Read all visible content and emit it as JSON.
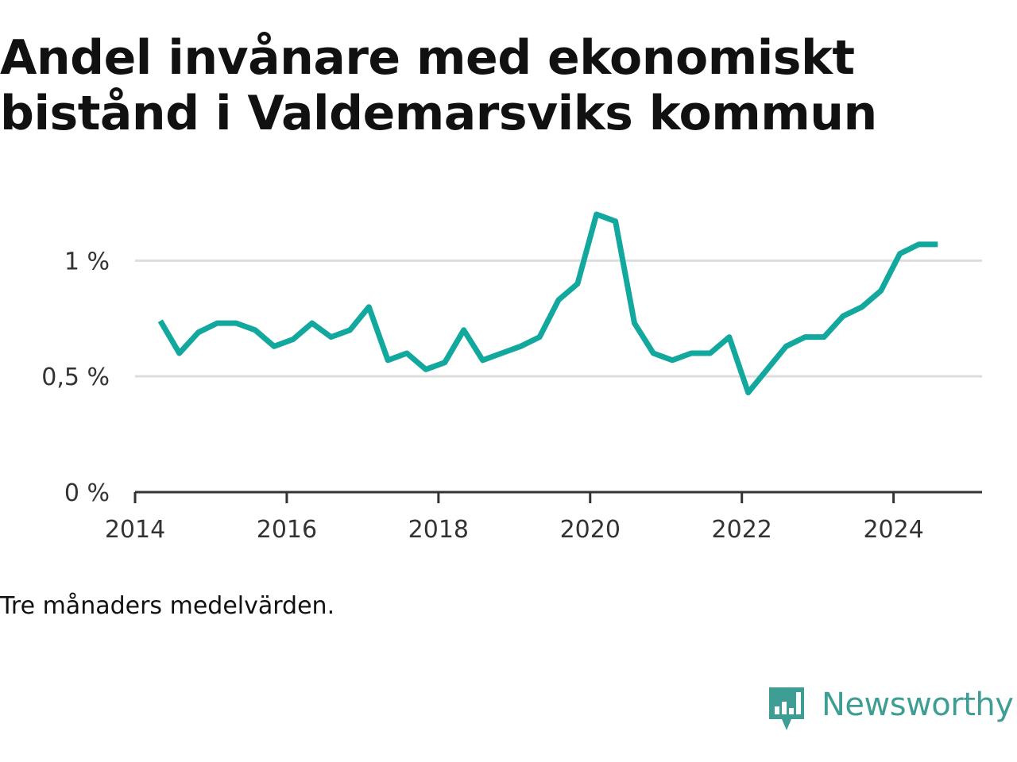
{
  "title": "Andel invånare med ekonomiskt bistånd i Valdemarsviks kommun",
  "note": "Tre månaders medelvärden.",
  "brand": {
    "name": "Newsworthy",
    "icon": "bar-chart-speech-bubble-icon",
    "color": "#3f9e93"
  },
  "chart_data": {
    "type": "line",
    "title": "Andel invånare med ekonomiskt bistånd i Valdemarsviks kommun",
    "xlabel": "",
    "ylabel": "",
    "xlim": [
      "2014-01",
      "2025-03"
    ],
    "ylim": [
      0,
      1.2
    ],
    "y_ticks": [
      0,
      0.5,
      1
    ],
    "y_tick_labels": [
      "0 %",
      "0,5 %",
      "1 %"
    ],
    "x_ticks": [
      "2014",
      "2016",
      "2018",
      "2020",
      "2022",
      "2024"
    ],
    "grid": true,
    "line_color": "#13a89e",
    "series": [
      {
        "name": "",
        "x": [
          "2014-05",
          "2014-08",
          "2014-11",
          "2015-02",
          "2015-05",
          "2015-08",
          "2015-11",
          "2016-02",
          "2016-05",
          "2016-08",
          "2016-11",
          "2017-02",
          "2017-05",
          "2017-08",
          "2017-11",
          "2018-02",
          "2018-05",
          "2018-08",
          "2018-11",
          "2019-02",
          "2019-05",
          "2019-08",
          "2019-11",
          "2020-02",
          "2020-05",
          "2020-08",
          "2020-11",
          "2021-02",
          "2021-05",
          "2021-08",
          "2021-11",
          "2022-02",
          "2022-05",
          "2022-08",
          "2022-11",
          "2023-02",
          "2023-05",
          "2023-08",
          "2023-11",
          "2024-02",
          "2024-05",
          "2024-08"
        ],
        "values": [
          0.74,
          0.6,
          0.69,
          0.73,
          0.73,
          0.7,
          0.63,
          0.66,
          0.73,
          0.67,
          0.7,
          0.8,
          0.57,
          0.6,
          0.53,
          0.56,
          0.7,
          0.57,
          0.6,
          0.63,
          0.67,
          0.83,
          0.9,
          1.2,
          1.17,
          0.73,
          0.6,
          0.57,
          0.6,
          0.6,
          0.67,
          0.43,
          0.53,
          0.63,
          0.67,
          0.67,
          0.76,
          0.8,
          0.87,
          1.03,
          1.07,
          1.07
        ]
      }
    ]
  }
}
